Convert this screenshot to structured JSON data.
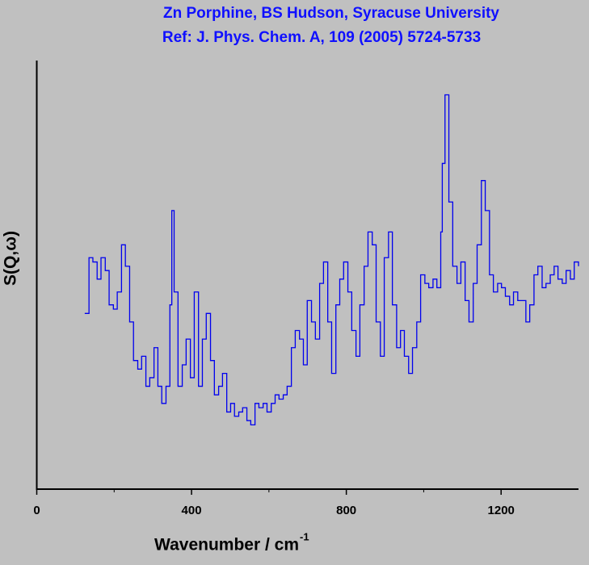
{
  "chart_data": {
    "type": "line",
    "step": true,
    "title": "Zn Porphine, BS Hudson, Syracuse University",
    "subtitle": "Ref: J. Phys. Chem. A, 109 (2005) 5724-5733",
    "xlabel": "Wavenumber / cm",
    "xlabel_sup": "-1",
    "ylabel": "S(Q,ω)",
    "xlim": [
      0,
      1400
    ],
    "xticks": [
      0,
      400,
      800,
      1200
    ],
    "xminorticks": [
      200,
      600,
      1000
    ],
    "ylim": [
      0,
      1
    ],
    "grid": false,
    "series": [
      {
        "name": "S(Q,ω)",
        "color": "#0000ee",
        "x": [
          124,
          135,
          145,
          156,
          166,
          177,
          187,
          198,
          208,
          219,
          229,
          240,
          250,
          261,
          271,
          282,
          292,
          303,
          313,
          323,
          334,
          344,
          349,
          355,
          365,
          376,
          386,
          397,
          407,
          418,
          428,
          438,
          449,
          459,
          470,
          480,
          491,
          501,
          511,
          522,
          532,
          543,
          553,
          564,
          574,
          585,
          595,
          606,
          616,
          626,
          637,
          647,
          658,
          668,
          679,
          689,
          699,
          710,
          720,
          731,
          741,
          752,
          762,
          773,
          783,
          793,
          804,
          814,
          825,
          835,
          846,
          856,
          867,
          877,
          888,
          898,
          909,
          919,
          930,
          940,
          950,
          961,
          971,
          982,
          992,
          1003,
          1013,
          1024,
          1034,
          1044,
          1048,
          1055,
          1065,
          1075,
          1086,
          1096,
          1107,
          1117,
          1128,
          1138,
          1149,
          1159,
          1170,
          1180,
          1191,
          1201,
          1211,
          1222,
          1232,
          1243,
          1253,
          1264,
          1274,
          1285,
          1295,
          1306,
          1316,
          1327,
          1337,
          1347,
          1358,
          1368,
          1379,
          1389,
          1400
        ],
        "values": [
          0.41,
          0.54,
          0.53,
          0.49,
          0.54,
          0.51,
          0.43,
          0.42,
          0.46,
          0.57,
          0.52,
          0.39,
          0.3,
          0.28,
          0.31,
          0.24,
          0.26,
          0.33,
          0.24,
          0.2,
          0.24,
          0.43,
          0.65,
          0.46,
          0.24,
          0.29,
          0.35,
          0.26,
          0.46,
          0.24,
          0.35,
          0.41,
          0.3,
          0.22,
          0.24,
          0.27,
          0.18,
          0.2,
          0.17,
          0.18,
          0.19,
          0.16,
          0.15,
          0.2,
          0.19,
          0.2,
          0.18,
          0.2,
          0.22,
          0.21,
          0.22,
          0.24,
          0.33,
          0.37,
          0.35,
          0.29,
          0.44,
          0.39,
          0.35,
          0.48,
          0.53,
          0.39,
          0.27,
          0.43,
          0.49,
          0.53,
          0.46,
          0.37,
          0.31,
          0.43,
          0.52,
          0.6,
          0.57,
          0.39,
          0.31,
          0.54,
          0.6,
          0.43,
          0.33,
          0.37,
          0.31,
          0.27,
          0.33,
          0.39,
          0.5,
          0.48,
          0.47,
          0.49,
          0.47,
          0.6,
          0.76,
          0.92,
          0.67,
          0.52,
          0.48,
          0.53,
          0.44,
          0.39,
          0.48,
          0.57,
          0.72,
          0.65,
          0.5,
          0.46,
          0.48,
          0.47,
          0.45,
          0.43,
          0.46,
          0.44,
          0.44,
          0.39,
          0.43,
          0.5,
          0.52,
          0.47,
          0.48,
          0.5,
          0.52,
          0.49,
          0.48,
          0.51,
          0.49,
          0.53,
          0.52
        ]
      }
    ]
  }
}
